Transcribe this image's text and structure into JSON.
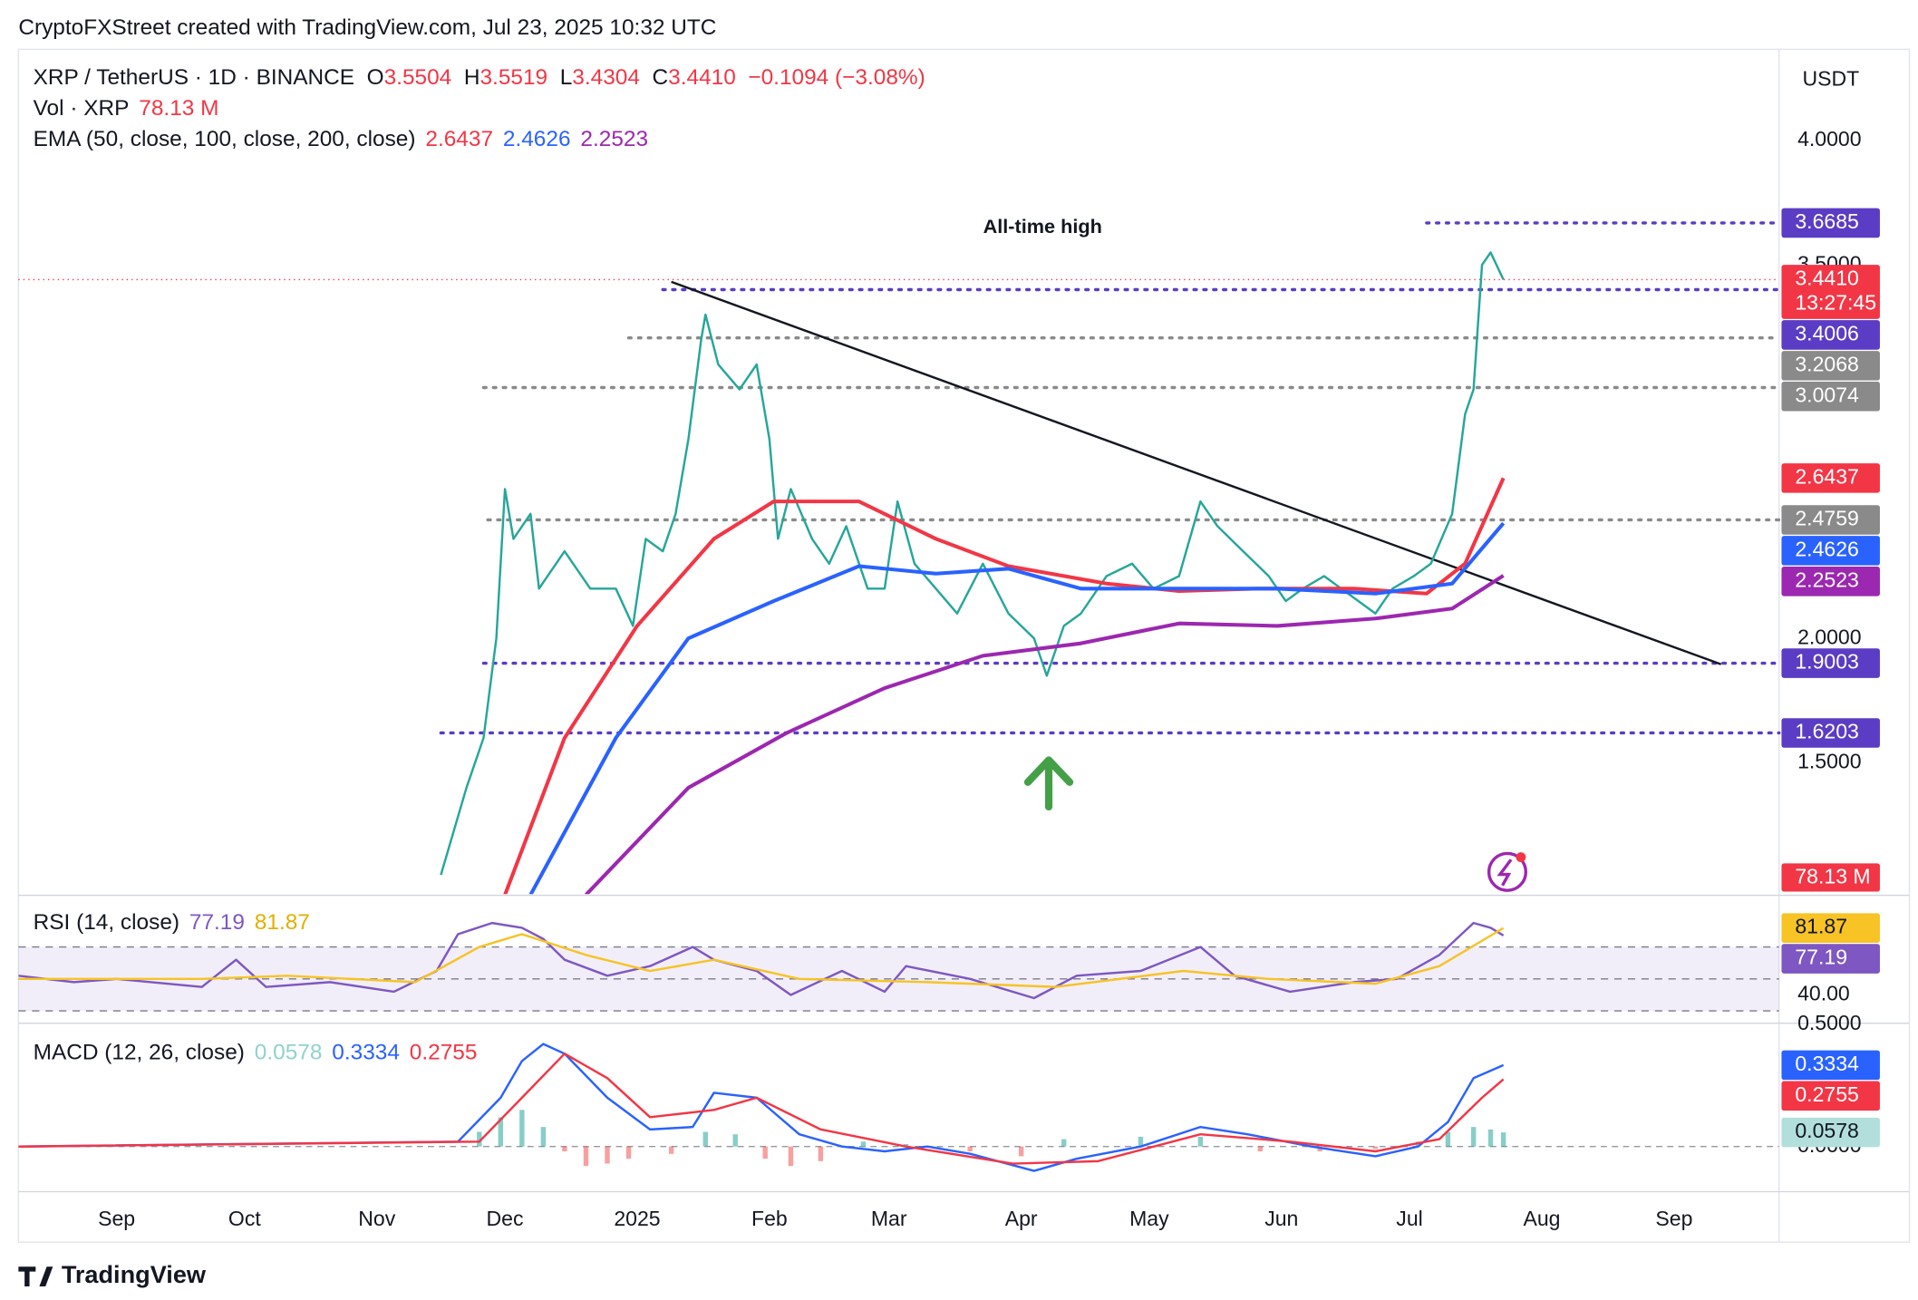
{
  "header": {
    "credit": "CryptoFXStreet created with TradingView.com, Jul 23, 2025 10:32 UTC",
    "symbol": "XRP / TetherUS · 1D · BINANCE",
    "ohlc": [
      {
        "key": "O",
        "value": "3.5504"
      },
      {
        "key": "H",
        "value": "3.5519"
      },
      {
        "key": "L",
        "value": "3.4304"
      },
      {
        "key": "C",
        "value": "3.4410"
      }
    ],
    "change": "−0.1094 (−3.08%)",
    "vol_label": "Vol · XRP",
    "vol_value": "78.13 M",
    "ema_label": "EMA (50, close, 100, close, 200, close)"
  },
  "currency": "USDT",
  "footer": "TradingView",
  "chart_data": [
    {
      "type": "line",
      "annotation": "All-time high",
      "xlim": [
        -23,
        389.6
      ],
      "ylim": [
        0.973,
        4.356
      ],
      "yticks": [
        {
          "value": 1.5,
          "label": "1.5000"
        },
        {
          "value": 2,
          "label": "2.0000"
        },
        {
          "value": 3.5,
          "label": "3.5000"
        },
        {
          "value": 4,
          "label": "4.0000"
        }
      ],
      "current_price": {
        "value": 3.441,
        "label": "3.4410"
      },
      "countdown": "13:27:45",
      "volume_tag": "78.13 M",
      "trendline": {
        "x": [
          130,
          376
        ],
        "values": [
          3.432,
          1.896
        ],
        "color": "#131722"
      },
      "levels": [
        {
          "value": 3.6685,
          "from": 307,
          "color": "#5b3cc4"
        },
        {
          "value": 3.4006,
          "from": 128,
          "color": "#5b3cc4"
        },
        {
          "value": 3.2068,
          "from": 120,
          "color": "#8a8a8a"
        },
        {
          "value": 3.0074,
          "from": 86,
          "color": "#8a8a8a"
        },
        {
          "value": 2.4759,
          "from": 87,
          "color": "#8a8a8a"
        },
        {
          "value": 1.9003,
          "from": 86,
          "color": "#5b3cc4"
        },
        {
          "value": 1.6203,
          "from": 76,
          "color": "#5b3cc4"
        }
      ],
      "series": [
        {
          "color": "#26a69a",
          "x": [
            76,
            82,
            86,
            89,
            91,
            93,
            97,
            99,
            105,
            111,
            117,
            121,
            124,
            128,
            131,
            134,
            137,
            138,
            141,
            146,
            150,
            153,
            155,
            158,
            163,
            167,
            171,
            176,
            180,
            183,
            187,
            192,
            197,
            203,
            209,
            215,
            218,
            222,
            226,
            232,
            238,
            243,
            249,
            254,
            258,
            264,
            270,
            274,
            278,
            283,
            287,
            291,
            295,
            299,
            304,
            308,
            313,
            316,
            318,
            320,
            322,
            325
          ],
          "values": [
            1.05,
            1.4,
            1.6,
            2.0,
            2.6,
            2.4,
            2.5,
            2.2,
            2.35,
            2.2,
            2.2,
            2.05,
            2.4,
            2.35,
            2.5,
            2.8,
            3.2,
            3.3,
            3.1,
            3.0,
            3.1,
            2.8,
            2.4,
            2.6,
            2.4,
            2.3,
            2.45,
            2.2,
            2.2,
            2.55,
            2.3,
            2.2,
            2.1,
            2.3,
            2.1,
            2.0,
            1.85,
            2.05,
            2.1,
            2.25,
            2.3,
            2.2,
            2.25,
            2.55,
            2.45,
            2.35,
            2.25,
            2.15,
            2.2,
            2.25,
            2.2,
            2.15,
            2.1,
            2.2,
            2.25,
            2.3,
            2.5,
            2.9,
            3.0,
            3.5,
            3.55,
            3.441
          ]
        },
        {
          "color": "#f23645",
          "x": [
            91,
            105,
            122,
            140,
            154,
            174,
            192,
            209,
            232,
            249,
            267,
            290,
            307,
            316,
            325
          ],
          "values": [
            0.97,
            1.6,
            2.05,
            2.4,
            2.55,
            2.55,
            2.4,
            2.29,
            2.22,
            2.19,
            2.2,
            2.2,
            2.18,
            2.3,
            2.6437
          ]
        },
        {
          "color": "#2962ff",
          "x": [
            97,
            117,
            134,
            154,
            174,
            192,
            209,
            226,
            249,
            272,
            295,
            313,
            325
          ],
          "values": [
            0.97,
            1.6,
            2.0,
            2.15,
            2.29,
            2.26,
            2.28,
            2.2,
            2.2,
            2.2,
            2.18,
            2.22,
            2.4626
          ]
        },
        {
          "color": "#9c27b0",
          "x": [
            110,
            134,
            157,
            180,
            203,
            226,
            249,
            272,
            295,
            313,
            325
          ],
          "values": [
            0.97,
            1.4,
            1.62,
            1.8,
            1.93,
            1.98,
            2.06,
            2.05,
            2.08,
            2.12,
            2.2523
          ]
        }
      ]
    },
    {
      "type": "line",
      "legend": "RSI (14, close)",
      "xlim": [
        -23,
        389.6
      ],
      "ylim": [
        23.8,
        100.8
      ],
      "bands": [
        70,
        50,
        30
      ],
      "yticks": [
        {
          "value": 40,
          "label": "40.00"
        }
      ],
      "series": [
        {
          "color": "#7e57c2",
          "x": [
            -23,
            -10,
            0,
            20,
            28,
            35,
            50,
            65,
            75,
            80,
            88,
            95,
            100,
            105,
            115,
            125,
            135,
            140,
            150,
            158,
            170,
            180,
            185,
            200,
            215,
            225,
            240,
            254,
            262,
            275,
            290,
            300,
            310,
            318,
            322,
            325
          ],
          "values": [
            52,
            48,
            50,
            45,
            62,
            45,
            48,
            42,
            55,
            78,
            85,
            82,
            75,
            62,
            52,
            58,
            70,
            62,
            55,
            40,
            55,
            42,
            58,
            50,
            38,
            52,
            55,
            70,
            52,
            42,
            48,
            50,
            65,
            85,
            82,
            77.19
          ]
        },
        {
          "color": "#f7c325",
          "x": [
            -23,
            20,
            40,
            70,
            85,
            95,
            110,
            125,
            140,
            160,
            190,
            220,
            250,
            270,
            295,
            310,
            325
          ],
          "values": [
            50,
            50,
            52,
            48,
            70,
            78,
            65,
            55,
            62,
            50,
            48,
            45,
            55,
            50,
            47,
            58,
            81.87
          ]
        }
      ]
    },
    {
      "type": "line",
      "legend": "MACD (12, 26, close)",
      "xlim": [
        -23,
        389.6
      ],
      "ylim": [
        -0.18,
        0.49
      ],
      "yticks": [
        {
          "value": 0,
          "label": "0.0000"
        },
        {
          "value": 0.5,
          "label": "0.5000"
        }
      ],
      "xticks": [
        {
          "value": 0,
          "label": "Sep"
        },
        {
          "value": 30,
          "label": "Oct"
        },
        {
          "value": 61,
          "label": "Nov"
        },
        {
          "value": 91,
          "label": "Dec"
        },
        {
          "value": 122,
          "label": "2025"
        },
        {
          "value": 153,
          "label": "Feb"
        },
        {
          "value": 181,
          "label": "Mar"
        },
        {
          "value": 212,
          "label": "Apr"
        },
        {
          "value": 242,
          "label": "May"
        },
        {
          "value": 273,
          "label": "Jun"
        },
        {
          "value": 303,
          "label": "Jul"
        },
        {
          "value": 334,
          "label": "Aug"
        },
        {
          "value": 365,
          "label": "Sep"
        }
      ],
      "histogram": {
        "pos_color": "#26a69a",
        "neg_color": "#ef5350",
        "x": [
          85,
          90,
          95,
          100,
          105,
          110,
          115,
          120,
          130,
          138,
          145,
          152,
          158,
          165,
          175,
          185,
          200,
          212,
          222,
          240,
          254,
          268,
          282,
          295,
          305,
          312,
          318,
          322,
          325
        ],
        "values": [
          0.06,
          0.12,
          0.15,
          0.08,
          -0.02,
          -0.08,
          -0.07,
          -0.05,
          -0.03,
          0.06,
          0.05,
          -0.05,
          -0.08,
          -0.06,
          0.02,
          0.01,
          -0.02,
          -0.04,
          0.03,
          0.04,
          0.04,
          -0.02,
          -0.02,
          -0.01,
          0.02,
          0.06,
          0.08,
          0.07,
          0.0578
        ]
      },
      "series": [
        {
          "color": "#2962ff",
          "x": [
            -23,
            80,
            90,
            95,
            100,
            105,
            115,
            125,
            135,
            140,
            150,
            160,
            170,
            180,
            190,
            200,
            215,
            225,
            240,
            254,
            265,
            280,
            295,
            305,
            312,
            318,
            325
          ],
          "values": [
            0,
            0.02,
            0.2,
            0.35,
            0.42,
            0.38,
            0.2,
            0.07,
            0.08,
            0.22,
            0.2,
            0.05,
            0,
            -0.02,
            0,
            -0.03,
            -0.1,
            -0.05,
            0,
            0.08,
            0.05,
            0,
            -0.04,
            0,
            0.1,
            0.28,
            0.3334
          ]
        },
        {
          "color": "#f23645",
          "x": [
            -23,
            85,
            95,
            105,
            115,
            125,
            140,
            150,
            165,
            185,
            210,
            230,
            254,
            275,
            295,
            310,
            320,
            325
          ],
          "values": [
            0,
            0.02,
            0.2,
            0.38,
            0.28,
            0.12,
            0.15,
            0.2,
            0.07,
            0,
            -0.07,
            -0.06,
            0.05,
            0.02,
            -0.02,
            0.03,
            0.2,
            0.2755
          ]
        }
      ]
    }
  ]
}
